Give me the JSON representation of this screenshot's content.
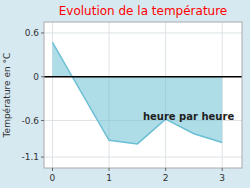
{
  "chart_data": {
    "type": "area",
    "title": "Evolution de la température",
    "y_label": "Température en °C",
    "annotation": "heure par heure",
    "x": [
      0,
      0.35,
      1.0,
      1.5,
      2.0,
      2.5,
      3.0
    ],
    "series": [
      {
        "color": "#6bbfd4",
        "values": [
          0.47,
          0.0,
          -0.87,
          -0.92,
          -0.58,
          -0.78,
          -0.9
        ]
      }
    ],
    "xlim": [
      -0.15,
      3.35
    ],
    "xticks": [
      0,
      1,
      2,
      3
    ],
    "ylim": [
      -1.25,
      0.75
    ],
    "yticks": [
      -1.1,
      -0.6,
      0.0,
      0.6
    ],
    "grid": true
  }
}
